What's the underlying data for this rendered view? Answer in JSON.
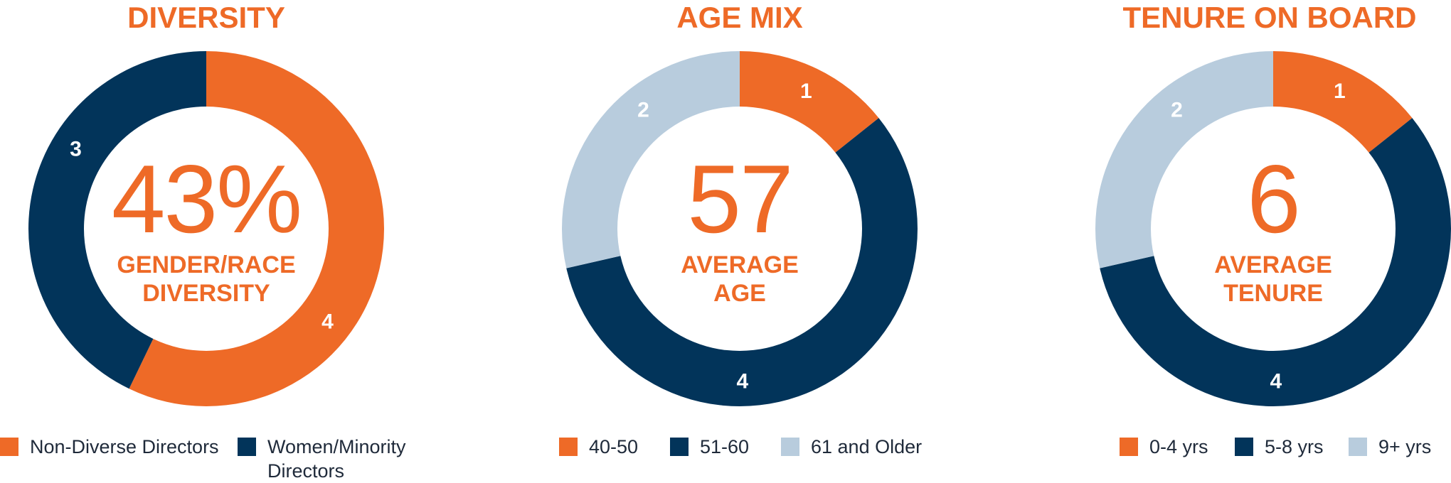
{
  "colors": {
    "orange": "#EE6A27",
    "navy": "#02345A",
    "light_blue": "#B8CCDD",
    "text": "#1F2A3A"
  },
  "chart_data": [
    {
      "type": "pie",
      "title": "DIVERSITY",
      "center_value": "43%",
      "center_label": "GENDER/RACE\nDIVERSITY",
      "categories": [
        "Non-Diverse Directors",
        "Women/Minority Directors"
      ],
      "values": [
        4,
        3
      ],
      "colors": [
        "#EE6A27",
        "#02345A"
      ],
      "legend_labels": [
        "Non-Diverse Directors",
        "Women/Minority\nDirectors"
      ]
    },
    {
      "type": "pie",
      "title": "AGE MIX",
      "center_value": "57",
      "center_label": "AVERAGE\nAGE",
      "categories": [
        "40-50",
        "51-60",
        "61 and Older"
      ],
      "values": [
        1,
        4,
        2
      ],
      "colors": [
        "#EE6A27",
        "#02345A",
        "#B8CCDD"
      ],
      "legend_labels": [
        "40-50",
        "51-60",
        "61 and Older"
      ]
    },
    {
      "type": "pie",
      "title": "TENURE ON BOARD",
      "center_value": "6",
      "center_label": "AVERAGE\nTENURE",
      "categories": [
        "0-4 yrs",
        "5-8 yrs",
        "9+ yrs"
      ],
      "values": [
        1,
        4,
        2
      ],
      "colors": [
        "#EE6A27",
        "#02345A",
        "#B8CCDD"
      ],
      "legend_labels": [
        "0-4 yrs",
        "5-8 yrs",
        "9+ yrs"
      ]
    }
  ]
}
